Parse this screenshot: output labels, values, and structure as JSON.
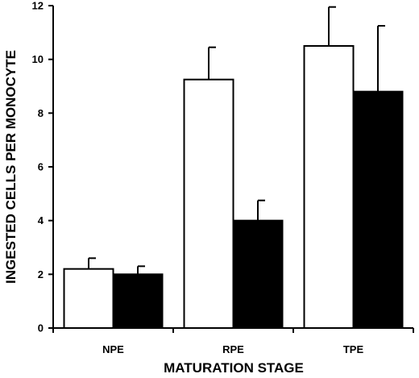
{
  "chart_data": {
    "type": "bar",
    "categories": [
      "NPE",
      "RPE",
      "TPE"
    ],
    "series": [
      {
        "fill": "white",
        "values": [
          2.2,
          9.25,
          10.5
        ],
        "error": [
          0.4,
          1.2,
          1.45
        ]
      },
      {
        "fill": "black",
        "values": [
          2.0,
          4.0,
          8.8
        ],
        "error": [
          0.3,
          0.75,
          2.45
        ]
      }
    ],
    "xlabel": "MATURATION STAGE",
    "ylabel": "INGESTED CELLS PER MONOCYTE",
    "ylim": [
      0,
      12
    ],
    "yticks": [
      "0",
      "2",
      "4",
      "6",
      "8",
      "10",
      "12"
    ],
    "grid": false
  }
}
